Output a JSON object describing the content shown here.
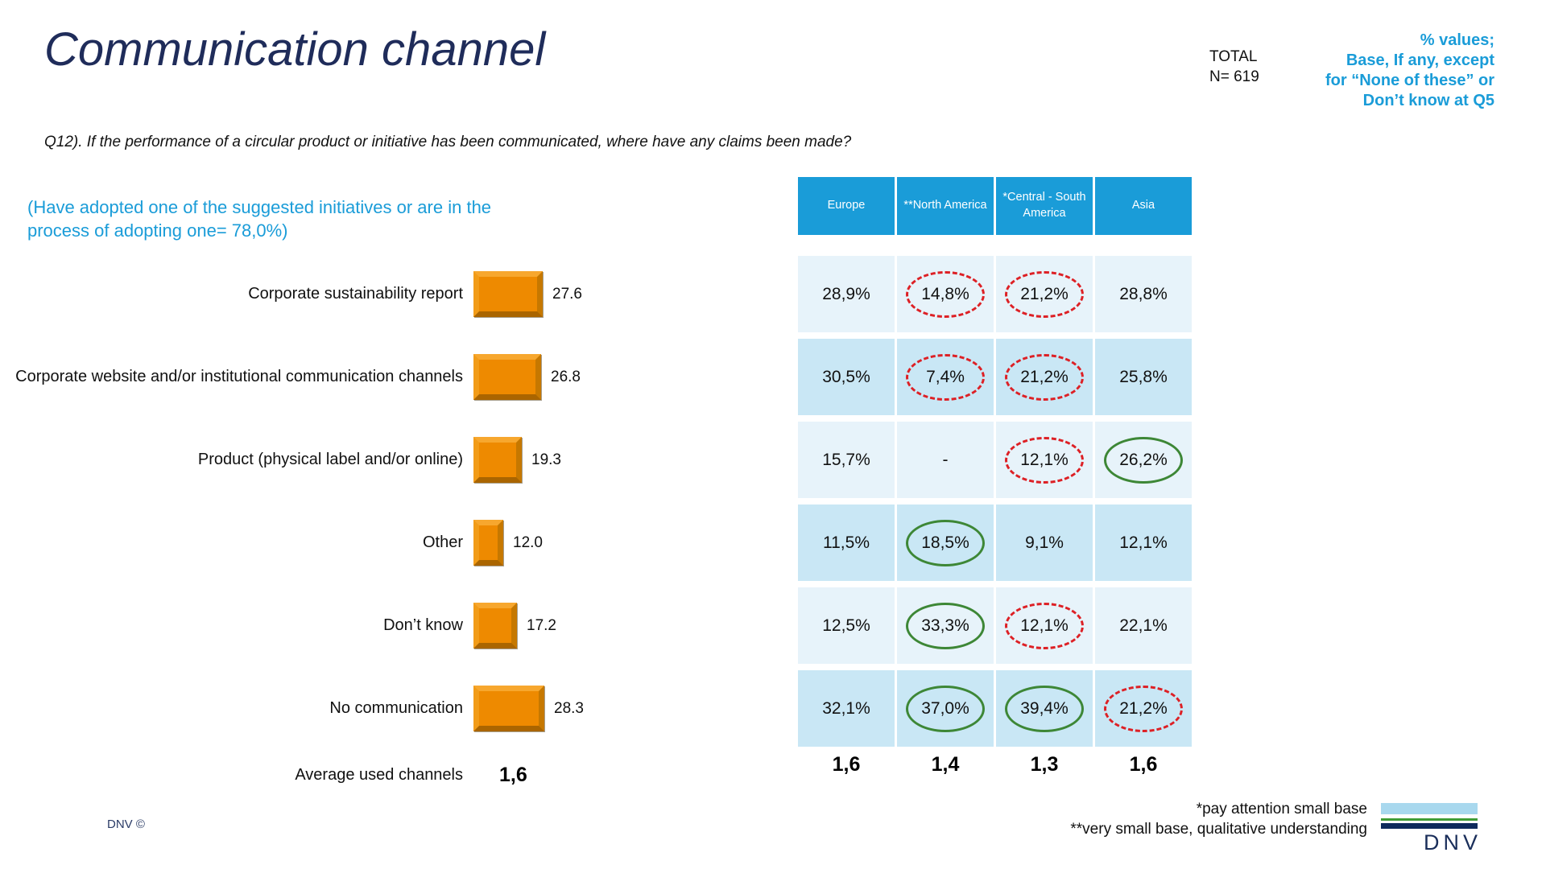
{
  "slide": {
    "title": "Communication channel",
    "total_label": "TOTAL",
    "total_n": "N= 619",
    "note_lines": [
      "% values;",
      "Base, If any, except",
      "for “None of these” or",
      "Don’t know at Q5"
    ],
    "question": "Q12). If the performance of a circular product or initiative has been communicated, where have any claims been made?",
    "annotation": "(Have adopted one of the suggested initiatives or are in the process of adopting one= 78,0%)",
    "footnote1": "*pay attention small base",
    "footnote2": "**very small base, qualitative understanding",
    "copyright": "DNV ©",
    "logo_text": "DNV"
  },
  "chart_data": {
    "type": "bar",
    "orientation": "horizontal",
    "title": "Communication channel",
    "xlabel": "",
    "ylabel": "",
    "xlim": [
      0,
      30
    ],
    "grid": false,
    "axis_hidden": true,
    "bar_color": "#ee8a00",
    "categories": [
      "Corporate sustainability report",
      "Corporate website and/or institutional communication channels",
      "Product (physical label and/or online)",
      "Other",
      "Don’t know",
      "No communication"
    ],
    "values": [
      27.6,
      26.8,
      19.3,
      12.0,
      17.2,
      28.3
    ],
    "value_labels": [
      "27.6",
      "26.8",
      "19.3",
      "12.0",
      "17.2",
      "28.3"
    ],
    "average_label": "Average used channels",
    "average_value": "1,6",
    "table": {
      "columns": [
        "Europe",
        "**North America",
        "*Central - South America",
        "Asia"
      ],
      "rows": [
        {
          "cells": [
            "28,9%",
            "14,8%",
            "21,2%",
            "28,8%"
          ],
          "marks": [
            "",
            "red",
            "red",
            ""
          ]
        },
        {
          "cells": [
            "30,5%",
            "7,4%",
            "21,2%",
            "25,8%"
          ],
          "marks": [
            "",
            "red",
            "red",
            ""
          ]
        },
        {
          "cells": [
            "15,7%",
            "-",
            "12,1%",
            "26,2%"
          ],
          "marks": [
            "",
            "",
            "red",
            "green"
          ]
        },
        {
          "cells": [
            "11,5%",
            "18,5%",
            "9,1%",
            "12,1%"
          ],
          "marks": [
            "",
            "green",
            "",
            ""
          ]
        },
        {
          "cells": [
            "12,5%",
            "33,3%",
            "12,1%",
            "22,1%"
          ],
          "marks": [
            "",
            "green",
            "red",
            ""
          ]
        },
        {
          "cells": [
            "32,1%",
            "37,0%",
            "39,4%",
            "21,2%"
          ],
          "marks": [
            "",
            "green",
            "green",
            "red"
          ]
        }
      ],
      "averages": [
        "1,6",
        "1,4",
        "1,3",
        "1,6"
      ],
      "mark_legend": {
        "red": "red dashed ellipse (low vs total)",
        "green": "green solid ellipse (high vs total)"
      }
    }
  }
}
